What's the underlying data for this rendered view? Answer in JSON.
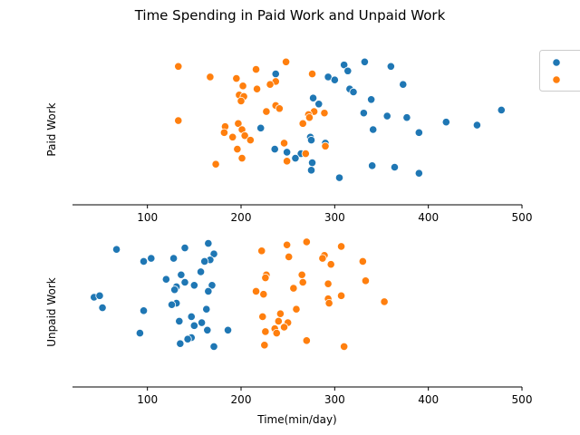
{
  "chart_data": {
    "type": "scatter",
    "title": "Time Spending in Paid Work and Unpaid Work",
    "xlabel": "Time(min/day)",
    "xlim": [
      20,
      500
    ],
    "xticks": [
      100,
      200,
      300,
      400,
      500
    ],
    "grid": false,
    "legend": {
      "placement": "top-right",
      "entries": [
        {
          "color": "#1f77b4"
        },
        {
          "color": "#ff7f0e"
        }
      ]
    },
    "panels": [
      {
        "ylabel": "Paid Work",
        "series": [
          {
            "color": "#1f77b4",
            "values": [
              [
                332,
                0.95
              ],
              [
                310,
                0.93
              ],
              [
                360,
                0.92
              ],
              [
                314,
                0.89
              ],
              [
                237,
                0.87
              ],
              [
                293,
                0.85
              ],
              [
                300,
                0.83
              ],
              [
                373,
                0.8
              ],
              [
                316,
                0.77
              ],
              [
                320,
                0.75
              ],
              [
                277,
                0.71
              ],
              [
                339,
                0.7
              ],
              [
                283,
                0.67
              ],
              [
                478,
                0.63
              ],
              [
                331,
                0.61
              ],
              [
                356,
                0.59
              ],
              [
                377,
                0.58
              ],
              [
                419,
                0.55
              ],
              [
                452,
                0.53
              ],
              [
                221,
                0.51
              ],
              [
                341,
                0.5
              ],
              [
                390,
                0.48
              ],
              [
                274,
                0.45
              ],
              [
                275,
                0.43
              ],
              [
                290,
                0.41
              ],
              [
                236,
                0.37
              ],
              [
                249,
                0.35
              ],
              [
                264,
                0.34
              ],
              [
                258,
                0.31
              ],
              [
                390,
                0.21
              ],
              [
                276,
                0.28
              ],
              [
                340,
                0.26
              ],
              [
                275,
                0.23
              ],
              [
                364,
                0.25
              ],
              [
                305,
                0.18
              ]
            ]
          },
          {
            "color": "#ff7f0e",
            "values": [
              [
                133,
                0.92
              ],
              [
                216,
                0.9
              ],
              [
                248,
                0.95
              ],
              [
                276,
                0.87
              ],
              [
                167,
                0.85
              ],
              [
                195,
                0.84
              ],
              [
                237,
                0.82
              ],
              [
                231,
                0.8
              ],
              [
                202,
                0.79
              ],
              [
                217,
                0.77
              ],
              [
                198,
                0.73
              ],
              [
                203,
                0.72
              ],
              [
                200,
                0.69
              ],
              [
                237,
                0.66
              ],
              [
                241,
                0.64
              ],
              [
                278,
                0.62
              ],
              [
                289,
                0.61
              ],
              [
                272,
                0.6
              ],
              [
                273,
                0.58
              ],
              [
                133,
                0.56
              ],
              [
                197,
                0.54
              ],
              [
                183,
                0.52
              ],
              [
                201,
                0.5
              ],
              [
                182,
                0.48
              ],
              [
                204,
                0.46
              ],
              [
                191,
                0.45
              ],
              [
                210,
                0.43
              ],
              [
                246,
                0.41
              ],
              [
                290,
                0.39
              ],
              [
                196,
                0.37
              ],
              [
                269,
                0.34
              ],
              [
                201,
                0.31
              ],
              [
                249,
                0.29
              ],
              [
                173,
                0.27
              ],
              [
                227,
                0.62
              ],
              [
                266,
                0.54
              ]
            ]
          }
        ]
      },
      {
        "ylabel": "Unpaid Work",
        "series": [
          {
            "color": "#1f77b4",
            "values": [
              [
                67,
                0.92
              ],
              [
                140,
                0.93
              ],
              [
                165,
                0.96
              ],
              [
                104,
                0.86
              ],
              [
                96,
                0.84
              ],
              [
                171,
                0.89
              ],
              [
                128,
                0.86
              ],
              [
                167,
                0.85
              ],
              [
                161,
                0.84
              ],
              [
                136,
                0.75
              ],
              [
                157,
                0.77
              ],
              [
                120,
                0.72
              ],
              [
                140,
                0.7
              ],
              [
                150,
                0.68
              ],
              [
                169,
                0.68
              ],
              [
                131,
                0.67
              ],
              [
                129,
                0.65
              ],
              [
                165,
                0.64
              ],
              [
                43,
                0.6
              ],
              [
                49,
                0.61
              ],
              [
                131,
                0.56
              ],
              [
                126,
                0.55
              ],
              [
                52,
                0.53
              ],
              [
                96,
                0.51
              ],
              [
                163,
                0.52
              ],
              [
                147,
                0.47
              ],
              [
                134,
                0.44
              ],
              [
                158,
                0.43
              ],
              [
                150,
                0.41
              ],
              [
                92,
                0.36
              ],
              [
                164,
                0.38
              ],
              [
                186,
                0.38
              ],
              [
                147,
                0.33
              ],
              [
                143,
                0.32
              ],
              [
                135,
                0.29
              ],
              [
                171,
                0.27
              ]
            ]
          },
          {
            "color": "#ff7f0e",
            "values": [
              [
                270,
                0.97
              ],
              [
                249,
                0.95
              ],
              [
                307,
                0.94
              ],
              [
                289,
                0.88
              ],
              [
                222,
                0.91
              ],
              [
                251,
                0.87
              ],
              [
                287,
                0.86
              ],
              [
                330,
                0.84
              ],
              [
                296,
                0.82
              ],
              [
                227,
                0.75
              ],
              [
                265,
                0.75
              ],
              [
                226,
                0.73
              ],
              [
                266,
                0.7
              ],
              [
                293,
                0.69
              ],
              [
                333,
                0.71
              ],
              [
                256,
                0.66
              ],
              [
                216,
                0.64
              ],
              [
                224,
                0.62
              ],
              [
                293,
                0.59
              ],
              [
                307,
                0.61
              ],
              [
                353,
                0.57
              ],
              [
                294,
                0.56
              ],
              [
                259,
                0.52
              ],
              [
                242,
                0.49
              ],
              [
                223,
                0.47
              ],
              [
                240,
                0.44
              ],
              [
                250,
                0.43
              ],
              [
                246,
                0.4
              ],
              [
                236,
                0.39
              ],
              [
                226,
                0.37
              ],
              [
                238,
                0.36
              ],
              [
                270,
                0.31
              ],
              [
                225,
                0.28
              ],
              [
                310,
                0.27
              ]
            ]
          }
        ]
      }
    ]
  }
}
